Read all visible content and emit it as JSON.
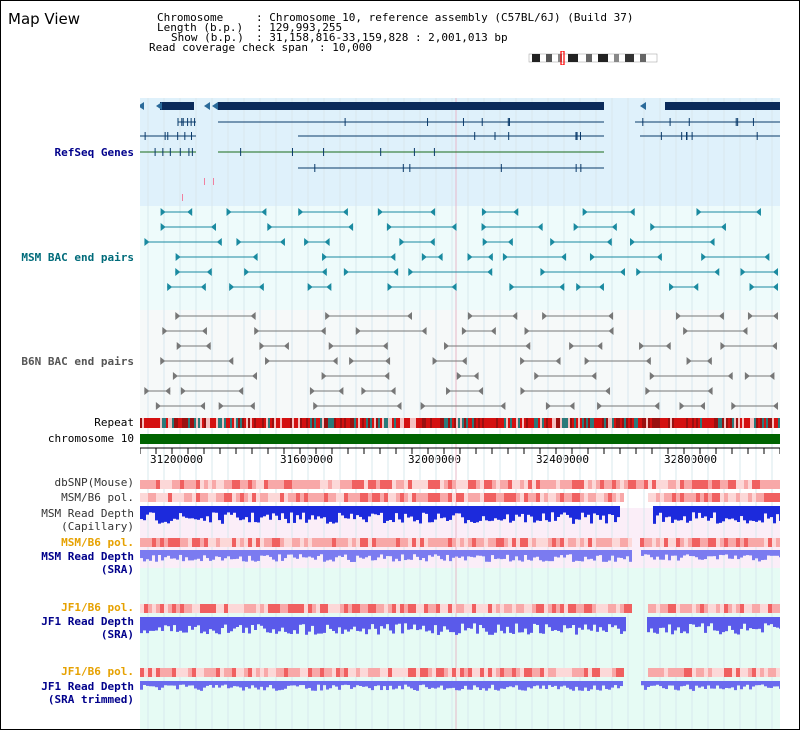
{
  "header": {
    "title": "Map View",
    "chromosome_label": "Chromosome",
    "chromosome_value": ": Chromosome 10, reference assembly (C57BL/6J) (Build 37)",
    "length_label": "Length (b.p.)",
    "length_value": ": 129,993,255",
    "show_label": "Show (b.p.)",
    "show_value": ": 31,158,816-33,159,828 : 2,001,013 bp",
    "coverage_label": "Read coverage check span",
    "coverage_value": ": 10,000"
  },
  "tracks": {
    "refseq": "RefSeq Genes",
    "msm_bac": "MSM BAC end pairs",
    "b6n_bac": "B6N BAC end pairs",
    "repeat": "Repeat",
    "chromosome": "chromosome 10",
    "dbsnp": "dbSNP(Mouse)",
    "msm_b6_pol_1": "MSM/B6 pol.",
    "msm_depth_cap_1": "MSM Read Depth",
    "msm_depth_cap_2": "(Capillary)",
    "msm_b6_pol_2": "MSM/B6 pol.",
    "msm_depth_sra_1": "MSM Read Depth",
    "msm_depth_sra_2": "(SRA)",
    "jf1_b6_pol_1": "JF1/B6 pol.",
    "jf1_depth_sra_1": "JF1 Read Depth",
    "jf1_depth_sra_2": "(SRA)",
    "jf1_b6_pol_2": "JF1/B6 pol.",
    "jf1_depth_trim_1": "JF1 Read Depth",
    "jf1_depth_trim_2": "(SRA trimmed)"
  },
  "axis": {
    "ticks": [
      "31200000",
      "31600000",
      "32000000",
      "32400000",
      "32800000"
    ]
  },
  "colors": {
    "navy": "#00008b",
    "teal": "#006b7a",
    "refseq_bg": "#dff1fb",
    "bac_bg": "#eefbfb",
    "chromosome_bar": "#006400",
    "depth_blue": "#1c2adc",
    "depth_light": "#7b7bf0"
  }
}
